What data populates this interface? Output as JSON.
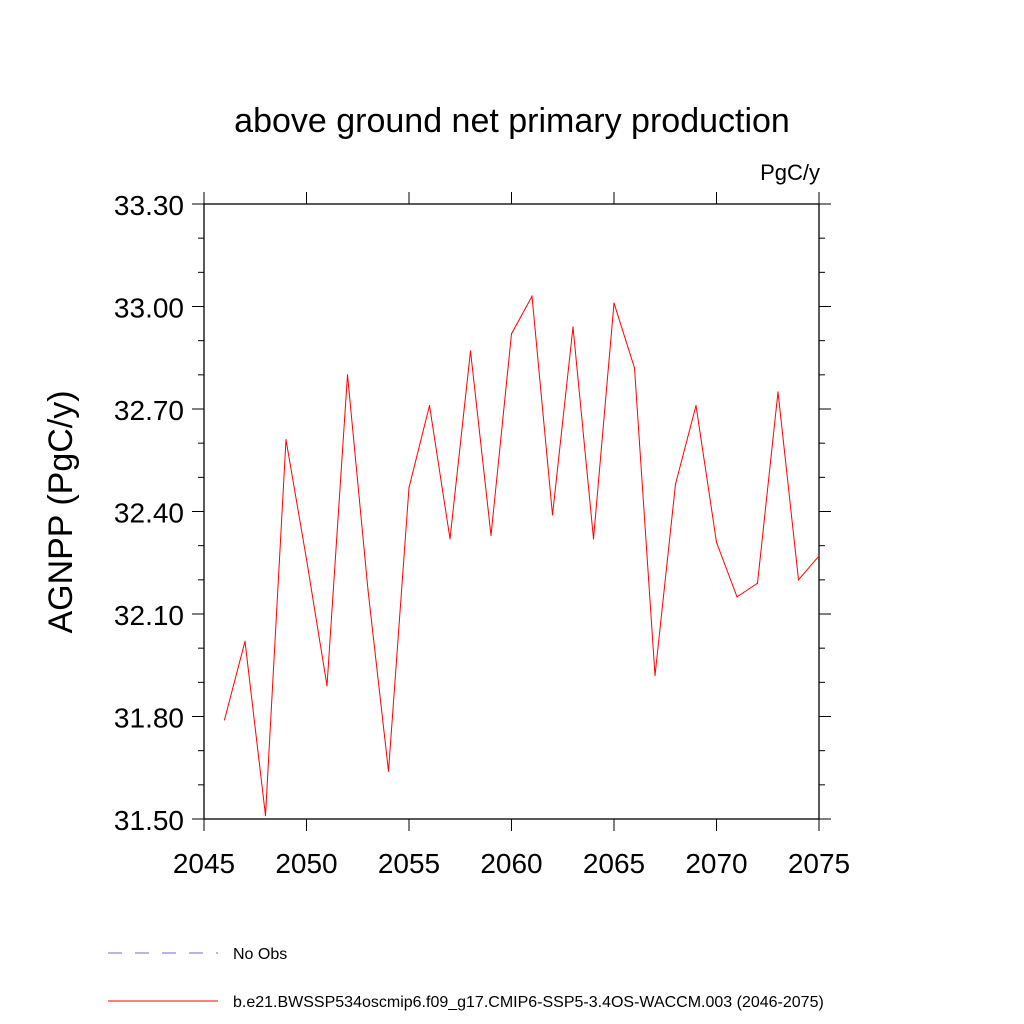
{
  "chart_data": {
    "type": "line",
    "title": "above ground net primary production",
    "units_label": "PgC/y",
    "xlabel": "",
    "ylabel": "AGNPP  (PgC/y)",
    "xlim": [
      2045,
      2075
    ],
    "ylim": [
      31.5,
      33.3
    ],
    "x_ticks": [
      2045,
      2050,
      2055,
      2060,
      2065,
      2070,
      2075
    ],
    "y_ticks": [
      "31.50",
      "31.80",
      "32.10",
      "32.40",
      "32.70",
      "33.00",
      "33.30"
    ],
    "series": [
      {
        "name": "b.e21.BWSSP534oscmip6.f09_g17.CMIP6-SSP5-3.4OS-WACCM.003 (2046-2075)",
        "color": "#ff0000",
        "x": [
          2046,
          2047,
          2048,
          2049,
          2050,
          2051,
          2052,
          2053,
          2054,
          2055,
          2056,
          2057,
          2058,
          2059,
          2060,
          2061,
          2062,
          2063,
          2064,
          2065,
          2066,
          2067,
          2068,
          2069,
          2070,
          2071,
          2072,
          2073,
          2074,
          2075
        ],
        "values": [
          31.79,
          32.02,
          31.51,
          32.61,
          32.26,
          31.89,
          32.8,
          32.17,
          31.64,
          32.47,
          32.71,
          32.32,
          32.87,
          32.33,
          32.92,
          33.03,
          32.39,
          32.94,
          32.32,
          33.01,
          32.82,
          31.92,
          32.48,
          32.71,
          32.31,
          32.15,
          32.19,
          32.75,
          32.2,
          32.27
        ]
      }
    ],
    "legend": [
      {
        "label": "No Obs",
        "color": "#7b68c8",
        "style": "dashed"
      },
      {
        "label": "b.e21.BWSSP534oscmip6.f09_g17.CMIP6-SSP5-3.4OS-WACCM.003 (2046-2075)",
        "color": "#ff0000",
        "style": "solid"
      }
    ],
    "legend_position": "bottom-left"
  }
}
